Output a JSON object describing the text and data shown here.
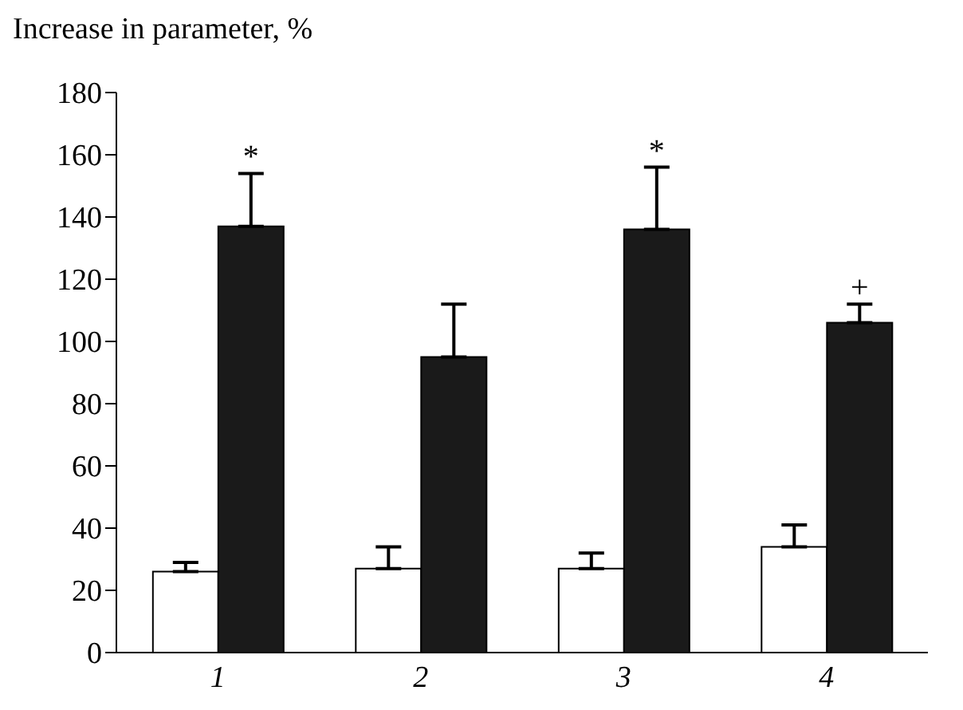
{
  "chart_data": {
    "type": "bar",
    "title": "Increase in parameter, %",
    "categories": [
      "1",
      "2",
      "3",
      "4"
    ],
    "series": [
      {
        "color": "#ffffff",
        "values": [
          26,
          27,
          27,
          34
        ],
        "errors": [
          [
            26,
            29
          ],
          [
            27,
            34
          ],
          [
            27,
            32
          ],
          [
            34,
            41
          ]
        ]
      },
      {
        "color": "#1a1a1a",
        "values": [
          137,
          95,
          136,
          106
        ],
        "errors": [
          [
            137,
            154
          ],
          [
            95,
            112
          ],
          [
            136,
            156
          ],
          [
            106,
            112
          ]
        ]
      }
    ],
    "ylim": [
      0,
      180
    ],
    "yticks": [
      0,
      20,
      40,
      60,
      80,
      100,
      120,
      140,
      160,
      180
    ],
    "grid": false,
    "legend": false,
    "annotations": [
      {
        "text": "*",
        "x": "1",
        "y": 137
      },
      {
        "text": "*",
        "x": "3",
        "y": 136
      },
      {
        "text": "+",
        "x": "4",
        "y": 106
      }
    ]
  }
}
